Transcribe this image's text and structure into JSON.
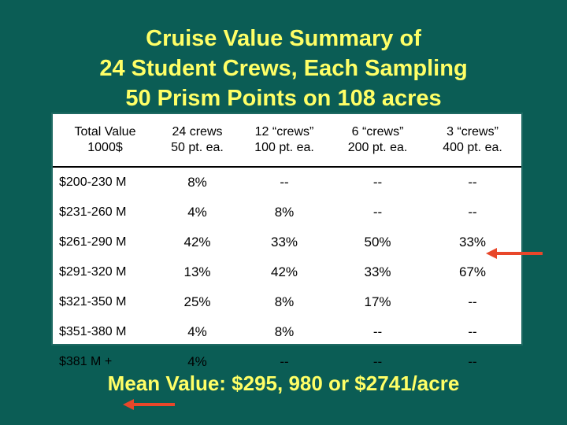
{
  "title": {
    "line1": "Cruise Value Summary of",
    "line2": "24 Student Crews, Each Sampling",
    "line3": "50 Prism Points on 108 acres"
  },
  "table": {
    "headers": [
      [
        "Total Value",
        "1000$"
      ],
      [
        "24 crews",
        "50 pt. ea."
      ],
      [
        "12 “crews”",
        "100 pt. ea."
      ],
      [
        "6 “crews”",
        "200 pt. ea."
      ],
      [
        "3 “crews”",
        "400 pt. ea."
      ]
    ],
    "rows": [
      [
        "$200-230 M",
        "8%",
        "--",
        "--",
        "--"
      ],
      [
        "$231-260 M",
        "4%",
        "8%",
        "--",
        "--"
      ],
      [
        "$261-290 M",
        "42%",
        "33%",
        "50%",
        "33%"
      ],
      [
        "$291-320 M",
        "13%",
        "42%",
        "33%",
        "67%"
      ],
      [
        "$321-350 M",
        "25%",
        "8%",
        "17%",
        "--"
      ],
      [
        "$351-380 M",
        "4%",
        "8%",
        "--",
        "--"
      ],
      [
        "$381 M +",
        "4%",
        "--",
        "--",
        "--"
      ]
    ]
  },
  "mean_value": "Mean Value: $295, 980 or $2741/acre",
  "colors": {
    "background": "#0b5d55",
    "title": "#ffff66",
    "arrow": "#e8472a",
    "table_bg": "#ffffff"
  }
}
